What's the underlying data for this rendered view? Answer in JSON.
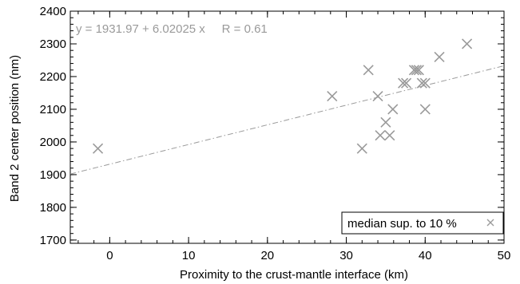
{
  "chart_data": {
    "type": "scatter",
    "xlabel": "Proximity to the crust-mantle interface (km)",
    "ylabel": "Band 2 center position (nm)",
    "xlim": [
      -5,
      50
    ],
    "ylim": [
      1690,
      2400
    ],
    "x_ticks": [
      0,
      10,
      20,
      30,
      40,
      50
    ],
    "y_ticks": [
      1700,
      1800,
      1900,
      2000,
      2100,
      2200,
      2300,
      2400
    ],
    "x_minor_step": 2,
    "y_minor_step": 20,
    "grid": false,
    "series": [
      {
        "name": "median sup. to 10 %",
        "marker": "x",
        "color": "#9a9a9a",
        "points": [
          {
            "x": -1.5,
            "y": 1980
          },
          {
            "x": 28.2,
            "y": 2140
          },
          {
            "x": 32.0,
            "y": 1980
          },
          {
            "x": 32.8,
            "y": 2220
          },
          {
            "x": 34.0,
            "y": 2140
          },
          {
            "x": 34.3,
            "y": 2020
          },
          {
            "x": 35.0,
            "y": 2060
          },
          {
            "x": 35.5,
            "y": 2020
          },
          {
            "x": 35.9,
            "y": 2100
          },
          {
            "x": 37.2,
            "y": 2180
          },
          {
            "x": 37.6,
            "y": 2180
          },
          {
            "x": 38.6,
            "y": 2220
          },
          {
            "x": 38.9,
            "y": 2220
          },
          {
            "x": 39.2,
            "y": 2220
          },
          {
            "x": 39.6,
            "y": 2180
          },
          {
            "x": 40.0,
            "y": 2180
          },
          {
            "x": 40.0,
            "y": 2100
          },
          {
            "x": 41.8,
            "y": 2260
          },
          {
            "x": 45.3,
            "y": 2300
          }
        ]
      }
    ],
    "fit": {
      "intercept": 1931.97,
      "slope": 6.02025,
      "color": "#9a9a9a",
      "style": "dash-dot"
    },
    "annotation": "y = 1931.97 + 6.02025 x     R = 0.61",
    "legend": {
      "position": "bottom-right",
      "label": "median sup. to 10 %"
    }
  }
}
